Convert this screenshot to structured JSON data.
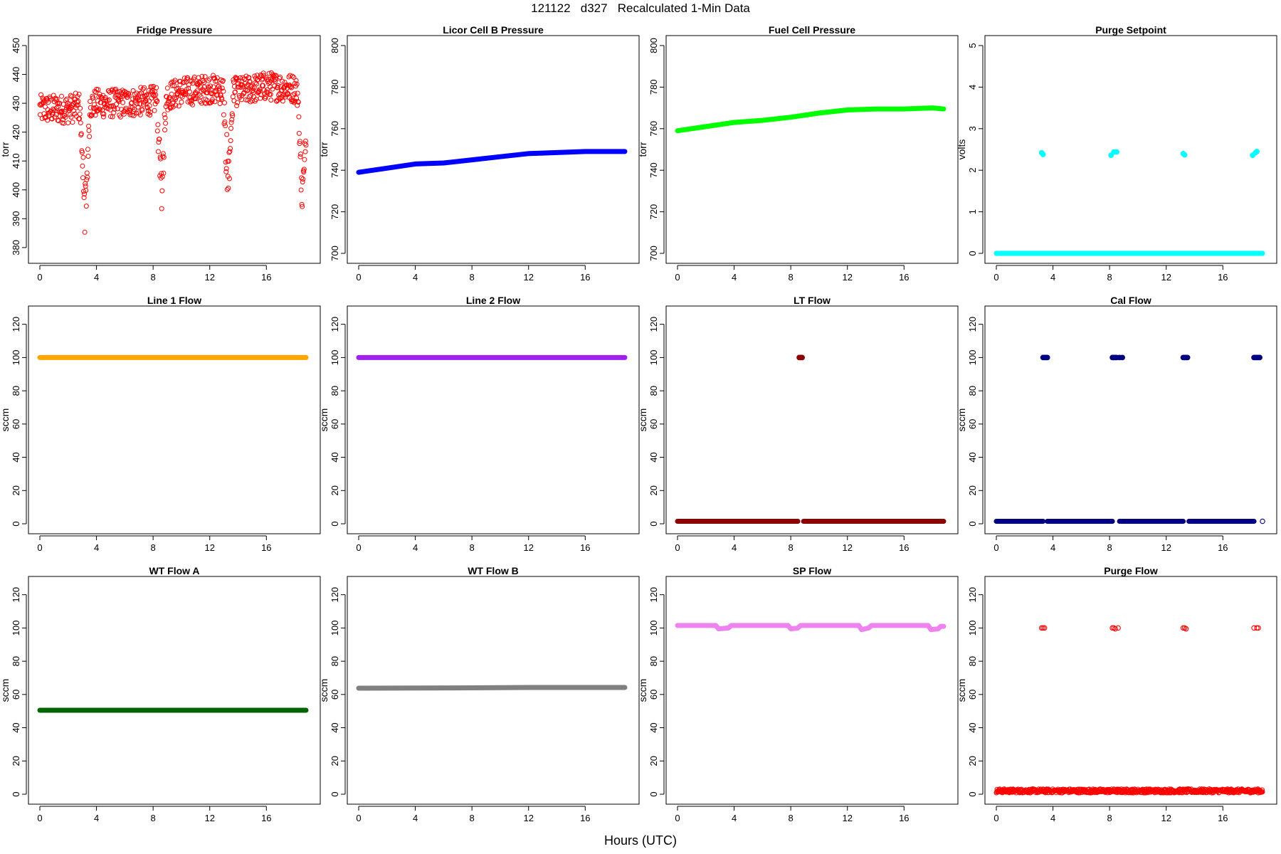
{
  "page": {
    "title": "121122   d327   Recalculated 1-Min Data",
    "xlabel": "Hours (UTC)"
  },
  "chart_data": [
    {
      "id": "fridge-pressure",
      "type": "scatter",
      "title": "Fridge Pressure",
      "ylabel": "torr",
      "color": "#ff0000",
      "marker": "open",
      "xlim": [
        0,
        19
      ],
      "ylim": [
        378,
        450
      ],
      "xticks": [
        0,
        4,
        8,
        12,
        16
      ],
      "yticks": [
        380,
        390,
        400,
        410,
        420,
        430,
        440,
        450
      ],
      "series": [
        {
          "kind": "noisy",
          "x_start": 0,
          "x_end": 18.8,
          "base": [
            [
              0,
              428
            ],
            [
              2,
              428
            ],
            [
              4,
              430
            ],
            [
              6,
              430
            ],
            [
              8,
              431
            ],
            [
              10,
              434
            ],
            [
              12,
              435
            ],
            [
              14,
              434
            ],
            [
              16,
              436
            ],
            [
              18.3,
              435
            ],
            [
              18.5,
              420
            ],
            [
              18.8,
              420
            ]
          ],
          "noise": 5,
          "dips": [
            {
              "x": 3.2,
              "min": 378
            },
            {
              "x": 8.6,
              "min": 388
            },
            {
              "x": 13.3,
              "min": 387
            },
            {
              "x": 18.5,
              "min": 391
            }
          ]
        }
      ]
    },
    {
      "id": "licor-cell-b-pressure",
      "type": "line",
      "title": "Licor Cell B Pressure",
      "ylabel": "torr",
      "color": "#0000ff",
      "marker": "filled",
      "xlim": [
        0,
        19
      ],
      "ylim": [
        700,
        800
      ],
      "xticks": [
        0,
        4,
        8,
        12,
        16
      ],
      "yticks": [
        700,
        720,
        740,
        760,
        780,
        800
      ],
      "series": [
        {
          "kind": "line",
          "points": [
            [
              0,
              739
            ],
            [
              2,
              741
            ],
            [
              4,
              743
            ],
            [
              6,
              743.5
            ],
            [
              8,
              745
            ],
            [
              10,
              746.5
            ],
            [
              12,
              748
            ],
            [
              14,
              748.5
            ],
            [
              16,
              749
            ],
            [
              18.8,
              749
            ]
          ]
        }
      ]
    },
    {
      "id": "fuel-cell-pressure",
      "type": "line",
      "title": "Fuel Cell Pressure",
      "ylabel": "torr",
      "color": "#00ff00",
      "marker": "filled",
      "xlim": [
        0,
        19
      ],
      "ylim": [
        700,
        800
      ],
      "xticks": [
        0,
        4,
        8,
        12,
        16
      ],
      "yticks": [
        700,
        720,
        740,
        760,
        780,
        800
      ],
      "series": [
        {
          "kind": "line",
          "points": [
            [
              0,
              759
            ],
            [
              2,
              761
            ],
            [
              4,
              763
            ],
            [
              6,
              764
            ],
            [
              8,
              765.5
            ],
            [
              10,
              767.5
            ],
            [
              12,
              769
            ],
            [
              14,
              769.5
            ],
            [
              16,
              769.5
            ],
            [
              18,
              770
            ],
            [
              18.8,
              769.5
            ]
          ]
        }
      ]
    },
    {
      "id": "purge-setpoint",
      "type": "scatter",
      "title": "Purge Setpoint",
      "ylabel": "volts",
      "color": "#00ffff",
      "marker": "filled",
      "xlim": [
        0,
        19
      ],
      "ylim": [
        0,
        5
      ],
      "xticks": [
        0,
        4,
        8,
        12,
        16
      ],
      "yticks": [
        0,
        1,
        2,
        3,
        4,
        5
      ],
      "series": [
        {
          "kind": "line",
          "points": [
            [
              0,
              0
            ],
            [
              18.8,
              0
            ]
          ]
        },
        {
          "kind": "points",
          "points": [
            [
              3.2,
              2.42
            ],
            [
              3.3,
              2.38
            ],
            [
              8.1,
              2.36
            ],
            [
              8.3,
              2.44
            ],
            [
              8.5,
              2.44
            ],
            [
              13.2,
              2.4
            ],
            [
              13.3,
              2.37
            ],
            [
              18.1,
              2.36
            ],
            [
              18.3,
              2.42
            ],
            [
              18.4,
              2.45
            ]
          ]
        }
      ]
    },
    {
      "id": "line-1-flow",
      "type": "line",
      "title": "Line 1 Flow",
      "ylabel": "sccm",
      "color": "#ffa500",
      "marker": "filled",
      "xlim": [
        0,
        19
      ],
      "ylim": [
        0,
        125
      ],
      "xticks": [
        0,
        4,
        8,
        12,
        16
      ],
      "yticks": [
        0,
        20,
        40,
        60,
        80,
        100,
        120
      ],
      "series": [
        {
          "kind": "line",
          "points": [
            [
              0,
              100
            ],
            [
              18.8,
              100
            ]
          ]
        }
      ]
    },
    {
      "id": "line-2-flow",
      "type": "line",
      "title": "Line 2 Flow",
      "ylabel": "sccm",
      "color": "#a020f0",
      "marker": "filled",
      "xlim": [
        0,
        19
      ],
      "ylim": [
        0,
        125
      ],
      "xticks": [
        0,
        4,
        8,
        12,
        16
      ],
      "yticks": [
        0,
        20,
        40,
        60,
        80,
        100,
        120
      ],
      "series": [
        {
          "kind": "line",
          "points": [
            [
              0,
              100
            ],
            [
              18.8,
              100
            ]
          ]
        }
      ]
    },
    {
      "id": "lt-flow",
      "type": "scatter",
      "title": "LT Flow",
      "ylabel": "sccm",
      "color": "#8b0000",
      "marker": "filled",
      "xlim": [
        0,
        19
      ],
      "ylim": [
        0,
        125
      ],
      "xticks": [
        0,
        4,
        8,
        12,
        16
      ],
      "yticks": [
        0,
        20,
        40,
        60,
        80,
        100,
        120
      ],
      "series": [
        {
          "kind": "line",
          "points": [
            [
              0,
              1.5
            ],
            [
              8.5,
              1.5
            ]
          ]
        },
        {
          "kind": "line",
          "points": [
            [
              8.9,
              1.5
            ],
            [
              18.8,
              1.5
            ]
          ]
        },
        {
          "kind": "points",
          "points": [
            [
              8.6,
              100
            ],
            [
              8.7,
              100
            ],
            [
              8.8,
              100
            ]
          ]
        }
      ]
    },
    {
      "id": "cal-flow",
      "type": "scatter",
      "title": "Cal Flow",
      "ylabel": "sccm",
      "color": "#000080",
      "marker": "filled",
      "xlim": [
        0,
        19
      ],
      "ylim": [
        0,
        125
      ],
      "xticks": [
        0,
        4,
        8,
        12,
        16
      ],
      "yticks": [
        0,
        20,
        40,
        60,
        80,
        100,
        120
      ],
      "series": [
        {
          "kind": "line",
          "points": [
            [
              0,
              1.5
            ],
            [
              3.3,
              1.5
            ]
          ]
        },
        {
          "kind": "line",
          "points": [
            [
              3.6,
              1.5
            ],
            [
              8.2,
              1.5
            ]
          ]
        },
        {
          "kind": "line",
          "points": [
            [
              8.7,
              1.5
            ],
            [
              13.2,
              1.5
            ]
          ]
        },
        {
          "kind": "line",
          "points": [
            [
              13.6,
              1.5
            ],
            [
              18.2,
              1.5
            ]
          ]
        },
        {
          "kind": "points",
          "points": [
            [
              3.3,
              100
            ],
            [
              3.4,
              100
            ],
            [
              3.5,
              100
            ],
            [
              3.6,
              100
            ],
            [
              8.2,
              100
            ],
            [
              8.3,
              100
            ],
            [
              8.4,
              100
            ],
            [
              8.5,
              100
            ],
            [
              8.7,
              100
            ],
            [
              8.9,
              100
            ],
            [
              13.2,
              100
            ],
            [
              13.3,
              100
            ],
            [
              13.4,
              100
            ],
            [
              13.5,
              100
            ],
            [
              18.2,
              100
            ],
            [
              18.3,
              100
            ],
            [
              18.4,
              100
            ],
            [
              18.5,
              100
            ],
            [
              18.6,
              100
            ]
          ]
        },
        {
          "kind": "open_points",
          "points": [
            [
              18.8,
              1.5
            ]
          ]
        }
      ]
    },
    {
      "id": "wt-flow-a",
      "type": "line",
      "title": "WT Flow A",
      "ylabel": "sccm",
      "color": "#006400",
      "marker": "filled",
      "xlim": [
        0,
        19
      ],
      "ylim": [
        0,
        125
      ],
      "xticks": [
        0,
        4,
        8,
        12,
        16
      ],
      "yticks": [
        0,
        20,
        40,
        60,
        80,
        100,
        120
      ],
      "series": [
        {
          "kind": "line",
          "points": [
            [
              0,
              50.5
            ],
            [
              18.8,
              50.5
            ]
          ]
        }
      ]
    },
    {
      "id": "wt-flow-b",
      "type": "line",
      "title": "WT Flow B",
      "ylabel": "sccm",
      "color": "#808080",
      "marker": "filled",
      "xlim": [
        0,
        19
      ],
      "ylim": [
        0,
        125
      ],
      "xticks": [
        0,
        4,
        8,
        12,
        16
      ],
      "yticks": [
        0,
        20,
        40,
        60,
        80,
        100,
        120
      ],
      "series": [
        {
          "kind": "line",
          "points": [
            [
              0,
              63.8
            ],
            [
              8,
              64
            ],
            [
              12,
              64.2
            ],
            [
              18.8,
              64.2
            ]
          ]
        }
      ]
    },
    {
      "id": "sp-flow",
      "type": "line",
      "title": "SP Flow",
      "ylabel": "sccm",
      "color": "#ee82ee",
      "marker": "filled",
      "xlim": [
        0,
        19
      ],
      "ylim": [
        0,
        125
      ],
      "xticks": [
        0,
        4,
        8,
        12,
        16
      ],
      "yticks": [
        0,
        20,
        40,
        60,
        80,
        100,
        120
      ],
      "series": [
        {
          "kind": "line",
          "points": [
            [
              0,
              101.5
            ],
            [
              2.7,
              101.5
            ],
            [
              2.9,
              99.5
            ],
            [
              3.6,
              100
            ],
            [
              3.8,
              101.5
            ],
            [
              7.8,
              101.5
            ],
            [
              8,
              99.5
            ],
            [
              8.5,
              100
            ],
            [
              8.7,
              101.5
            ],
            [
              12.8,
              101.5
            ],
            [
              13,
              99
            ],
            [
              13.5,
              100
            ],
            [
              13.7,
              101.5
            ],
            [
              17.7,
              101.5
            ],
            [
              17.9,
              99
            ],
            [
              18.4,
              99.5
            ],
            [
              18.6,
              101
            ],
            [
              18.8,
              101
            ]
          ]
        }
      ]
    },
    {
      "id": "purge-flow",
      "type": "scatter",
      "title": "Purge Flow",
      "ylabel": "sccm",
      "color": "#ff0000",
      "marker": "open",
      "xlim": [
        0,
        19
      ],
      "ylim": [
        0,
        125
      ],
      "xticks": [
        0,
        4,
        8,
        12,
        16
      ],
      "yticks": [
        0,
        20,
        40,
        60,
        80,
        100,
        120
      ],
      "series": [
        {
          "kind": "noisy",
          "x_start": 0,
          "x_end": 18.8,
          "base": [
            [
              0,
              2
            ],
            [
              18.8,
              2
            ]
          ],
          "noise": 1.2,
          "dips": []
        },
        {
          "kind": "points",
          "points": [
            [
              3.2,
              100
            ],
            [
              3.3,
              100
            ],
            [
              3.4,
              100
            ],
            [
              8.2,
              100
            ],
            [
              8.3,
              100
            ],
            [
              8.4,
              99.5
            ],
            [
              8.6,
              100
            ],
            [
              13.2,
              100
            ],
            [
              13.3,
              100
            ],
            [
              13.4,
              99.5
            ],
            [
              18.2,
              100
            ],
            [
              18.4,
              100
            ],
            [
              18.5,
              100
            ]
          ]
        }
      ]
    }
  ]
}
